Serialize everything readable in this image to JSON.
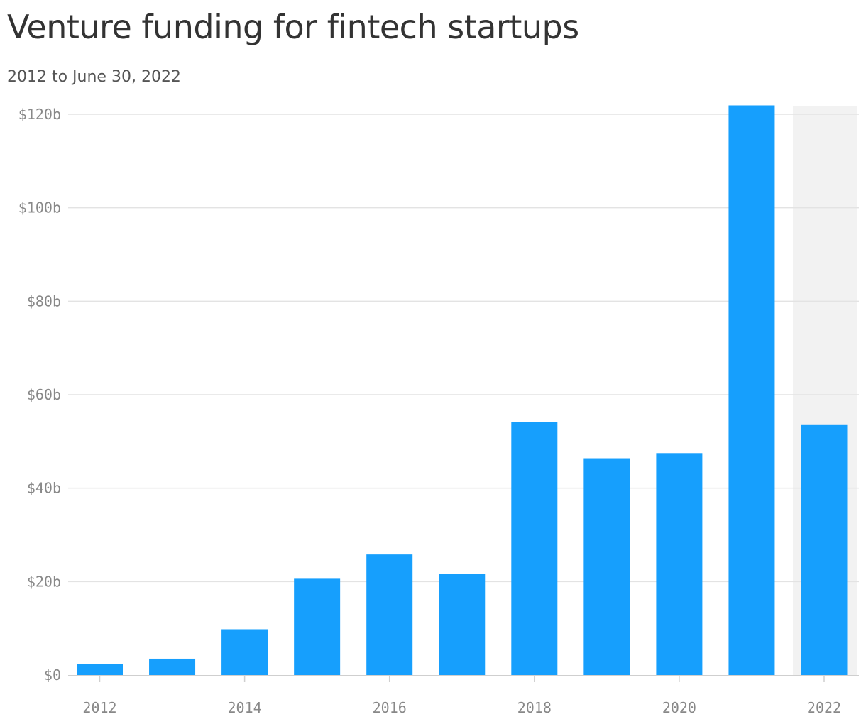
{
  "header": {
    "title": "Venture funding for fintech startups",
    "subtitle": "2012 to June 30, 2022"
  },
  "colors": {
    "bar": "#169ffd",
    "grid": "#e3e3e3",
    "axis": "#cfcfcf",
    "partial_year_band": "#f2f2f2",
    "tick_text": "#888888"
  },
  "chart_data": {
    "type": "bar",
    "title": "Venture funding for fintech startups",
    "subtitle": "2012 to June 30, 2022",
    "xlabel": "",
    "ylabel": "",
    "categories": [
      "2012",
      "2013",
      "2014",
      "2015",
      "2016",
      "2017",
      "2018",
      "2019",
      "2020",
      "2021",
      "2022"
    ],
    "values": [
      2.3,
      3.5,
      9.8,
      20.6,
      25.8,
      21.7,
      54.2,
      46.4,
      47.5,
      121.9,
      53.5
    ],
    "unit": "billions USD",
    "ylim": [
      0,
      120
    ],
    "y_ticks": [
      0,
      20,
      40,
      60,
      80,
      100,
      120
    ],
    "y_tick_labels": [
      "$0",
      "$20b",
      "$40b",
      "$60b",
      "$80b",
      "$100b",
      "$120b"
    ],
    "x_tick_labels": [
      "2012",
      "2014",
      "2016",
      "2018",
      "2020",
      "2022"
    ],
    "x_tick_values": [
      "2012",
      "2014",
      "2016",
      "2018",
      "2020",
      "2022"
    ],
    "highlight_category": "2022",
    "grid": true,
    "legend": "none"
  }
}
